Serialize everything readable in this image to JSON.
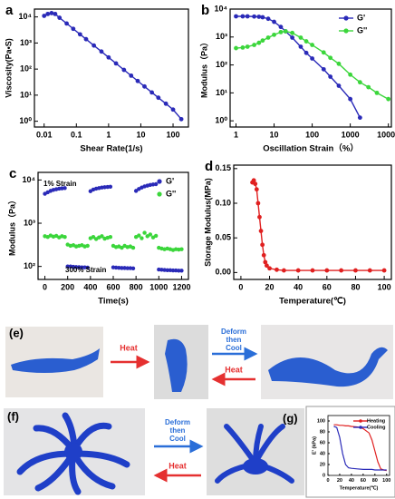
{
  "chart_data": [
    {
      "type": "line",
      "panel": "a",
      "xlabel": "Shear Rate(1/s)",
      "ylabel": "Viscosity(Pa•S)",
      "xlog": true,
      "ylog": true,
      "xlim": [
        0.005,
        300
      ],
      "ylim": [
        0.6,
        20000
      ],
      "xticks": [
        0.01,
        0.1,
        1,
        10,
        100
      ],
      "yticks": [
        {
          "value": 1,
          "label": "10⁰"
        },
        {
          "value": 10,
          "label": "10¹"
        },
        {
          "value": 100,
          "label": "10²"
        },
        {
          "value": 1000,
          "label": "10³"
        },
        {
          "value": 10000,
          "label": "10⁴"
        }
      ],
      "x": [
        0.01,
        0.013,
        0.017,
        0.022,
        0.03,
        0.05,
        0.08,
        0.13,
        0.2,
        0.35,
        0.6,
        1,
        1.7,
        3,
        5,
        8,
        13,
        22,
        35,
        60,
        100,
        180
      ],
      "series": [
        {
          "color": "#2a2ab8",
          "values": [
            11000,
            13000,
            14000,
            13000,
            9300,
            5600,
            3500,
            2150,
            1400,
            800,
            470,
            280,
            165,
            93,
            56,
            35,
            21.5,
            12.7,
            8,
            4.7,
            2.8,
            1.2
          ]
        }
      ]
    },
    {
      "type": "line",
      "panel": "b",
      "xlabel": "Oscillation Strain（%）",
      "ylabel": "Modulus（Pa）",
      "xlog": true,
      "ylog": true,
      "xlim": [
        0.7,
        12000
      ],
      "ylim": [
        0.6,
        10000
      ],
      "legend": "upper right",
      "xticks": [
        1,
        10,
        100,
        1000,
        10000
      ],
      "yticks": [
        {
          "value": 1,
          "label": "10⁰"
        },
        {
          "value": 10,
          "label": "10¹"
        },
        {
          "value": 100,
          "label": "10²"
        },
        {
          "value": 1000,
          "label": "10³"
        },
        {
          "value": 10000,
          "label": "10⁴"
        }
      ],
      "x": [
        1,
        1.5,
        2,
        3,
        4,
        5,
        7,
        10,
        15,
        20,
        30,
        50,
        70,
        100,
        200,
        300,
        500,
        1000,
        1800,
        3000,
        5000,
        10000
      ],
      "series": [
        {
          "name": "G'",
          "color": "#2a2ab8",
          "values": [
            5500,
            5500,
            5500,
            5400,
            5300,
            5100,
            4500,
            3500,
            2300,
            1600,
            950,
            450,
            270,
            170,
            70,
            38,
            18,
            6,
            1.3,
            null,
            null,
            null
          ]
        },
        {
          "name": "G''",
          "color": "#3bd63b",
          "values": [
            400,
            420,
            450,
            520,
            620,
            750,
            950,
            1200,
            1500,
            1600,
            1400,
            950,
            700,
            520,
            280,
            180,
            110,
            45,
            24,
            16,
            10,
            6
          ]
        }
      ]
    },
    {
      "type": "scatter",
      "panel": "c",
      "xlabel": "Time(s)",
      "ylabel": "Modulus（Pa）",
      "ylog": true,
      "xlim": [
        -60,
        1260
      ],
      "ylim": [
        50,
        15000
      ],
      "legend": "upper right",
      "annotations": [
        "1% Strain",
        "300% Strain"
      ],
      "xticks": [
        0,
        200,
        400,
        600,
        800,
        1000,
        1200
      ],
      "yticks": [
        {
          "value": 100,
          "label": "10²"
        },
        {
          "value": 1000,
          "label": "10³"
        },
        {
          "value": 10000,
          "label": "10⁴"
        }
      ],
      "x": [
        0,
        25,
        50,
        75,
        100,
        125,
        150,
        175,
        200,
        225,
        250,
        275,
        300,
        325,
        350,
        375,
        400,
        425,
        450,
        475,
        500,
        525,
        550,
        575,
        600,
        625,
        650,
        675,
        700,
        725,
        750,
        775,
        800,
        825,
        850,
        875,
        900,
        925,
        950,
        975,
        1000,
        1025,
        1050,
        1075,
        1100,
        1125,
        1150,
        1175,
        1200
      ],
      "series": [
        {
          "name": "G'",
          "color": "#2a2ab8",
          "values": [
            4800,
            5200,
            5600,
            5900,
            6100,
            6300,
            6400,
            6500,
            100,
            100,
            98,
            97,
            96,
            95,
            95,
            94,
            5500,
            6000,
            6300,
            6500,
            6700,
            6800,
            6900,
            7000,
            95,
            94,
            93,
            92,
            92,
            91,
            91,
            90,
            5600,
            6200,
            6700,
            7100,
            7400,
            7700,
            7900,
            8000,
            85,
            84,
            83,
            82,
            82,
            81,
            81,
            80,
            80
          ]
        },
        {
          "name": "G''",
          "color": "#3bd63b",
          "values": [
            500,
            480,
            520,
            490,
            510,
            470,
            500,
            480,
            320,
            300,
            310,
            290,
            300,
            310,
            290,
            300,
            450,
            480,
            430,
            470,
            500,
            440,
            460,
            480,
            300,
            280,
            290,
            270,
            300,
            280,
            290,
            270,
            480,
            520,
            450,
            600,
            500,
            550,
            470,
            510,
            270,
            260,
            250,
            260,
            250,
            240,
            250,
            245,
            250
          ]
        }
      ]
    },
    {
      "type": "line",
      "panel": "d",
      "xlabel": "Temperature(℃)",
      "ylabel": "Storage Modulus(MPa)",
      "xlim": [
        -5,
        105
      ],
      "ylim": [
        -0.01,
        0.155
      ],
      "xticks": [
        0,
        20,
        40,
        60,
        80,
        100
      ],
      "yticks": [
        {
          "value": 0,
          "label": "0.00"
        },
        {
          "value": 0.05,
          "label": "0.05"
        },
        {
          "value": 0.1,
          "label": "0.10"
        },
        {
          "value": 0.15,
          "label": "0.15"
        }
      ],
      "x": [
        8,
        9,
        10,
        11,
        12,
        13,
        14,
        15,
        16,
        17,
        18,
        20,
        25,
        30,
        40,
        50,
        60,
        70,
        80,
        90,
        100
      ],
      "series": [
        {
          "color": "#e02020",
          "values": [
            0.13,
            0.133,
            0.128,
            0.12,
            0.1,
            0.08,
            0.06,
            0.04,
            0.025,
            0.015,
            0.01,
            0.006,
            0.004,
            0.003,
            0.003,
            0.003,
            0.003,
            0.003,
            0.003,
            0.003,
            0.003
          ]
        }
      ]
    },
    {
      "type": "line",
      "panel": "(g)",
      "xlabel": "Temperature(℃)",
      "ylabel": "E' (kPa)",
      "xlim": [
        0,
        105
      ],
      "ylim": [
        0,
        110
      ],
      "legend": "upper right",
      "xticks": [
        0,
        20,
        40,
        60,
        80,
        100
      ],
      "yticks": [
        0,
        20,
        40,
        60,
        80,
        100
      ],
      "x": [
        10,
        15,
        20,
        25,
        30,
        35,
        40,
        50,
        60,
        70,
        75,
        80,
        85,
        90,
        95,
        100
      ],
      "series": [
        {
          "name": "Heating",
          "color": "#e02020",
          "values": [
            93,
            93,
            92,
            92,
            91,
            91,
            90,
            89,
            86,
            78,
            65,
            45,
            25,
            12,
            10,
            9
          ]
        },
        {
          "name": "Cooling",
          "color": "#2a2ab8",
          "values": [
            90,
            88,
            70,
            40,
            20,
            14,
            13,
            12,
            11,
            11,
            11,
            10,
            10,
            10,
            10,
            10
          ]
        }
      ]
    }
  ],
  "photos": {
    "e": {
      "label": "(e)",
      "heat": "Heat",
      "deform": [
        "Deform",
        "then",
        "Cool"
      ],
      "heat_back": "Heat"
    },
    "f": {
      "label": "(f)",
      "deform": [
        "Deform",
        "then",
        "Cool"
      ],
      "heat_back": "Heat"
    }
  }
}
